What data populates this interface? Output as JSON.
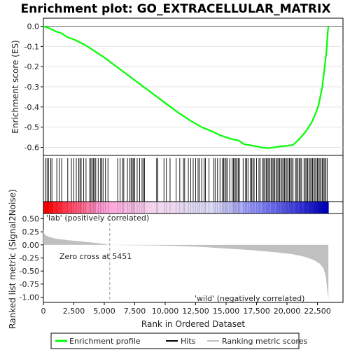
{
  "chart_data": {
    "type": "line",
    "title": "Enrichment plot: GO_EXTRACELLULAR_MATRIX",
    "x_axis": {
      "label": "Rank in Ordered Dataset",
      "range": [
        0,
        24600
      ],
      "ticks": [
        0,
        2500,
        5000,
        7500,
        10000,
        12500,
        15000,
        17500,
        20000,
        22500
      ],
      "tick_labels": [
        "0",
        "2,500",
        "5,000",
        "7,500",
        "10,000",
        "12,500",
        "15,000",
        "17,500",
        "20,000",
        "22,500"
      ]
    },
    "enrichment_panel": {
      "ylabel": "Enrichment score (ES)",
      "ylim": [
        -0.64,
        0.04
      ],
      "ticks": [
        0.0,
        -0.1,
        -0.2,
        -0.3,
        -0.4,
        -0.5,
        -0.6
      ],
      "tick_labels": [
        "0.0",
        "-0.1",
        "-0.2",
        "-0.3",
        "-0.4",
        "-0.5",
        "-0.6"
      ],
      "grid": true,
      "series": {
        "name": "Enrichment profile",
        "color": "#00ff00",
        "x": [
          0,
          500,
          1000,
          1500,
          2000,
          2500,
          3000,
          3500,
          4000,
          5000,
          6000,
          7000,
          8000,
          9000,
          10000,
          11000,
          12000,
          13000,
          14000,
          14500,
          15000,
          15500,
          16000,
          16500,
          17000,
          17500,
          18000,
          18500,
          19000,
          19500,
          20000,
          20500,
          21000,
          21500,
          22000,
          22300,
          22600,
          22900,
          23100,
          23250,
          23350,
          23400
        ],
        "y": [
          0.0,
          -0.01,
          -0.025,
          -0.035,
          -0.055,
          -0.065,
          -0.08,
          -0.095,
          -0.115,
          -0.155,
          -0.2,
          -0.245,
          -0.29,
          -0.335,
          -0.38,
          -0.425,
          -0.465,
          -0.5,
          -0.525,
          -0.54,
          -0.55,
          -0.56,
          -0.565,
          -0.585,
          -0.59,
          -0.595,
          -0.602,
          -0.604,
          -0.6,
          -0.595,
          -0.593,
          -0.588,
          -0.56,
          -0.525,
          -0.48,
          -0.44,
          -0.39,
          -0.3,
          -0.2,
          -0.12,
          -0.03,
          0.0
        ]
      }
    },
    "hits_panel": {
      "legend_label": "Hits",
      "hit_color": "#000000",
      "positions": [
        150,
        300,
        420,
        600,
        700,
        1100,
        1300,
        1500,
        2000,
        2300,
        2500,
        2700,
        2900,
        3000,
        3100,
        3300,
        3500,
        3800,
        3900,
        4000,
        4100,
        4200,
        4300,
        4500,
        4700,
        4800,
        4900,
        5100,
        5300,
        6100,
        6300,
        6500,
        6600,
        6900,
        7100,
        7200,
        7300,
        7400,
        7500,
        7700,
        7900,
        8100,
        8200,
        8300,
        9300,
        9400,
        9900,
        10100,
        10400,
        10900,
        11200,
        11500,
        11600,
        11900,
        12100,
        12300,
        12500,
        12700,
        12800,
        13000,
        13200,
        13300,
        13600,
        14000,
        14100,
        14300,
        14500,
        14700,
        14800,
        14900,
        15000,
        15100,
        15300,
        15500,
        15600,
        15700,
        15800,
        15900,
        16000,
        16100,
        16400,
        16600,
        16700,
        16800,
        17000,
        17100,
        17200,
        17300,
        17500,
        17700,
        17800,
        18000,
        18100,
        18200,
        18300,
        18400,
        18500,
        18600,
        18700,
        18800,
        18900,
        19000,
        19100,
        19200,
        19300,
        19400,
        19500,
        19600,
        19700,
        19800,
        19900,
        20000,
        20100,
        20200,
        20300,
        20400,
        20500,
        20700,
        20800,
        20900,
        21000,
        21100,
        21200,
        21400,
        21500,
        21600,
        21700,
        21800,
        21900,
        22000,
        22100,
        22200,
        22300,
        22400,
        22500,
        22600,
        22700,
        22800,
        22900,
        23000,
        23100,
        23200,
        23300
      ]
    },
    "metric_panel": {
      "ylabel": "Ranked list metric (Signal2Noise)",
      "legend_label": "Ranking metric scores",
      "fill_color": "#c0c0c0",
      "ylim": [
        -1.1,
        0.6
      ],
      "ticks": [
        0.5,
        0.25,
        0.0,
        -0.25,
        -0.5,
        -0.75,
        -1.0
      ],
      "tick_labels": [
        "0.50",
        "0.25",
        "0.00",
        "-0.25",
        "-0.50",
        "-0.75",
        "-1.00"
      ],
      "x": [
        0,
        50,
        200,
        500,
        1000,
        2000,
        3000,
        4000,
        5000,
        5451,
        7000,
        9000,
        11000,
        13000,
        15000,
        17000,
        19000,
        20500,
        21500,
        22200,
        22700,
        23000,
        23200,
        23300,
        23400
      ],
      "y": [
        0.3,
        0.22,
        0.18,
        0.15,
        0.12,
        0.09,
        0.07,
        0.045,
        0.02,
        0.0,
        -0.005,
        -0.01,
        -0.02,
        -0.04,
        -0.07,
        -0.1,
        -0.14,
        -0.18,
        -0.23,
        -0.29,
        -0.36,
        -0.45,
        -0.62,
        -0.85,
        -1.05
      ],
      "zero_cross": 5451,
      "zero_cross_label": "Zero cross at 5451",
      "pos_label": "'lab' (positively correlated)",
      "pos_label_color": "#d00000",
      "neg_label": "'wild' (negatively correlated)",
      "neg_label_color": "#0000cc"
    },
    "heatmap_bar": {
      "colors": [
        "#ff0000",
        "#ff9ed8",
        "#f2d8ee",
        "#d9d9f5",
        "#7a7aff",
        "#0000c8"
      ]
    },
    "legend": {
      "position": "bottom",
      "items": [
        "Enrichment profile",
        "Hits",
        "Ranking metric scores"
      ]
    }
  }
}
